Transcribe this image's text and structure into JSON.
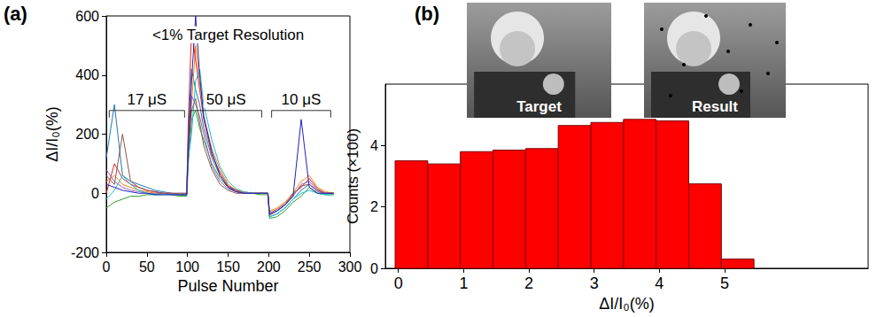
{
  "chart_data": [
    {
      "type": "line",
      "panel": "(a)",
      "x_label": "Pulse Number",
      "y_label": "ΔI/I₀(%)",
      "x": [
        0,
        10,
        20,
        30,
        40,
        50,
        60,
        70,
        80,
        90,
        99,
        101,
        105,
        110,
        115,
        120,
        130,
        140,
        150,
        160,
        170,
        180,
        190,
        199,
        201,
        210,
        220,
        230,
        240,
        250,
        260,
        270,
        280
      ],
      "series": [
        {
          "color": "#1f77b4",
          "values": [
            120,
            300,
            60,
            40,
            30,
            20,
            10,
            5,
            0,
            -5,
            -5,
            200,
            420,
            350,
            300,
            220,
            120,
            60,
            20,
            10,
            0,
            0,
            0,
            0,
            -80,
            -70,
            -50,
            -20,
            10,
            30,
            10,
            0,
            0
          ]
        },
        {
          "color": "#ff7f0e",
          "values": [
            40,
            60,
            30,
            20,
            10,
            5,
            0,
            0,
            -5,
            -5,
            -5,
            150,
            300,
            500,
            380,
            260,
            150,
            80,
            30,
            10,
            5,
            0,
            0,
            0,
            -60,
            -50,
            -30,
            0,
            40,
            60,
            20,
            5,
            0
          ]
        },
        {
          "color": "#2ca02c",
          "values": [
            -50,
            -30,
            -20,
            -10,
            -10,
            -5,
            -5,
            0,
            -5,
            -10,
            -10,
            100,
            250,
            280,
            220,
            180,
            100,
            50,
            20,
            5,
            0,
            0,
            -5,
            -5,
            -85,
            -80,
            -60,
            -30,
            -10,
            20,
            0,
            -5,
            -5
          ]
        },
        {
          "color": "#d62728",
          "values": [
            0,
            100,
            50,
            30,
            20,
            10,
            5,
            0,
            0,
            -5,
            -5,
            250,
            550,
            450,
            350,
            250,
            130,
            70,
            25,
            10,
            0,
            0,
            0,
            0,
            -75,
            -60,
            -40,
            0,
            20,
            50,
            15,
            0,
            0
          ]
        },
        {
          "color": "#9467bd",
          "values": [
            80,
            40,
            20,
            10,
            5,
            0,
            0,
            0,
            0,
            0,
            0,
            180,
            330,
            300,
            260,
            200,
            90,
            40,
            15,
            5,
            0,
            0,
            0,
            0,
            -70,
            -60,
            -40,
            -10,
            30,
            40,
            10,
            0,
            0
          ]
        },
        {
          "color": "#17becf",
          "values": [
            -20,
            10,
            60,
            30,
            10,
            0,
            -5,
            -5,
            -5,
            -5,
            -5,
            120,
            200,
            380,
            420,
            300,
            180,
            90,
            40,
            15,
            5,
            0,
            0,
            0,
            -80,
            -70,
            -50,
            -20,
            0,
            10,
            0,
            -5,
            -5
          ]
        },
        {
          "color": "#8c564b",
          "values": [
            60,
            30,
            200,
            40,
            20,
            10,
            5,
            0,
            0,
            0,
            0,
            140,
            280,
            320,
            240,
            160,
            80,
            30,
            10,
            0,
            0,
            0,
            0,
            0,
            -65,
            -55,
            -35,
            -5,
            25,
            30,
            5,
            0,
            0
          ]
        },
        {
          "color": "#2020c0",
          "values": [
            30,
            20,
            10,
            5,
            0,
            0,
            -5,
            -5,
            -5,
            -5,
            -5,
            160,
            380,
            600,
            400,
            260,
            140,
            60,
            20,
            5,
            0,
            0,
            0,
            0,
            -70,
            -60,
            -40,
            -10,
            250,
            20,
            0,
            0,
            0
          ]
        }
      ],
      "xlim": [
        0,
        300
      ],
      "xticks": [
        0,
        50,
        100,
        150,
        200,
        250,
        300
      ],
      "ylim": [
        -200,
        600
      ],
      "yticks": [
        -200,
        0,
        200,
        400,
        600
      ],
      "grid": false,
      "annotations": [
        {
          "text": "17 μS",
          "span": [
            0,
            100
          ]
        },
        {
          "text": "50 μS",
          "span": [
            100,
            195
          ]
        },
        {
          "text": "10 μS",
          "span": [
            200,
            280
          ]
        },
        {
          "text": "<1% Target Resolution"
        }
      ]
    },
    {
      "type": "histogram",
      "panel": "(b)",
      "x_label": "ΔI/I₀(%)",
      "y_label": "Counts (×100)",
      "bins": [
        -0.05,
        0.45,
        0.95,
        1.45,
        1.95,
        2.45,
        2.95,
        3.45,
        3.95,
        4.45,
        4.95,
        5.45
      ],
      "counts": [
        3.5,
        3.4,
        3.8,
        3.85,
        3.9,
        4.65,
        4.75,
        4.85,
        4.8,
        2.75,
        0.3
      ],
      "color": "#ff0000",
      "xlim": [
        -0.2,
        7.2
      ],
      "xticks": [
        0,
        1,
        2,
        3,
        4,
        5
      ],
      "ylim": [
        0,
        6
      ],
      "yticks": [
        0,
        2,
        4
      ],
      "grid": false,
      "insets": [
        "Target",
        "Result"
      ]
    }
  ]
}
